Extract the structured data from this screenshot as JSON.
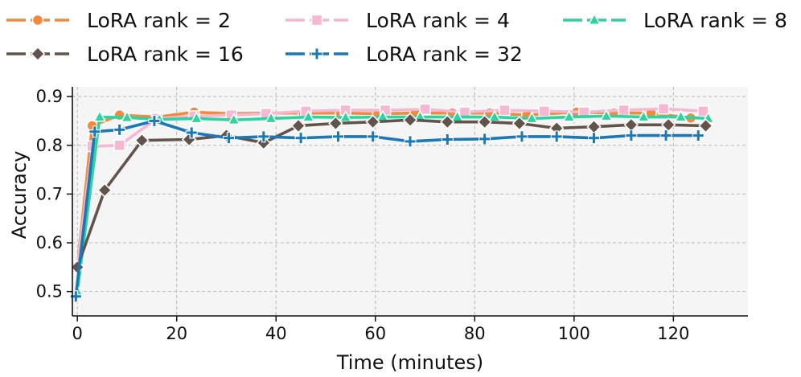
{
  "chart_data": {
    "type": "line",
    "xlabel": "Time (minutes)",
    "ylabel": "Accuracy",
    "xlim": [
      -1,
      135
    ],
    "ylim": [
      0.45,
      0.92
    ],
    "xticks": [
      0,
      20,
      40,
      60,
      80,
      100,
      120
    ],
    "yticks": [
      0.5,
      0.6,
      0.7,
      0.8,
      0.9
    ],
    "xtick_labels": [
      "0",
      "20",
      "40",
      "60",
      "80",
      "100",
      "120"
    ],
    "ytick_labels": [
      "0.5",
      "0.6",
      "0.7",
      "0.8",
      "0.9"
    ],
    "grid": true,
    "legend_position": "top",
    "series": [
      {
        "name": "LoRA rank = 2",
        "legend_label": "LoRA rank = 2",
        "color": "#f4893b",
        "marker": "circle",
        "x": [
          0,
          3,
          8.5,
          16,
          23.5,
          31,
          38,
          45.5,
          53,
          60.5,
          68,
          75.5,
          83,
          90.5,
          100.5,
          108,
          115.5,
          123.5
        ],
        "y": [
          0.55,
          0.84,
          0.862,
          0.858,
          0.868,
          0.865,
          0.866,
          0.866,
          0.866,
          0.865,
          0.866,
          0.866,
          0.866,
          0.862,
          0.868,
          0.866,
          0.866,
          0.856
        ]
      },
      {
        "name": "LoRA rank = 4",
        "legend_label": "LoRA rank = 4",
        "color": "#f7b6d2",
        "marker": "square",
        "x": [
          0,
          3,
          8.5,
          16,
          23.5,
          31,
          38,
          46,
          54,
          62,
          70,
          78,
          86,
          94,
          102,
          110,
          118,
          126
        ],
        "y": [
          0.55,
          0.798,
          0.8,
          0.855,
          0.86,
          0.862,
          0.865,
          0.87,
          0.872,
          0.872,
          0.874,
          0.868,
          0.872,
          0.87,
          0.868,
          0.872,
          0.875,
          0.87
        ]
      },
      {
        "name": "LoRA rank = 8",
        "legend_label": "LoRA rank = 8",
        "color": "#2dd4a0",
        "marker": "triangle",
        "x": [
          0,
          4.5,
          10,
          16.5,
          24,
          31.5,
          39,
          46.5,
          54,
          61.5,
          69,
          76.5,
          84,
          91.5,
          99,
          106.5,
          114,
          121.5,
          127
        ],
        "y": [
          0.5,
          0.858,
          0.857,
          0.853,
          0.855,
          0.852,
          0.855,
          0.858,
          0.857,
          0.858,
          0.858,
          0.858,
          0.858,
          0.855,
          0.858,
          0.86,
          0.858,
          0.858,
          0.855
        ]
      },
      {
        "name": "LoRA rank = 16",
        "legend_label": "LoRA rank = 16",
        "color": "#62544a",
        "marker": "diamond",
        "x": [
          0,
          5.5,
          13,
          22.5,
          30,
          37.5,
          44.5,
          52,
          59.5,
          67,
          74.5,
          82,
          89,
          96.5,
          104,
          111.5,
          119,
          126.5
        ],
        "y": [
          0.55,
          0.708,
          0.81,
          0.812,
          0.82,
          0.805,
          0.84,
          0.845,
          0.848,
          0.852,
          0.848,
          0.848,
          0.845,
          0.835,
          0.838,
          0.842,
          0.842,
          0.84
        ]
      },
      {
        "name": "LoRA rank = 32",
        "legend_label": "LoRA rank = 32",
        "color": "#1878b8",
        "marker": "plus",
        "x": [
          -0.3,
          3.5,
          8.5,
          15.5,
          23,
          30.5,
          37.5,
          45,
          52.5,
          59.5,
          67,
          74.5,
          82,
          89.5,
          96.5,
          104,
          111.5,
          118.5,
          125
        ],
        "y": [
          0.49,
          0.828,
          0.832,
          0.85,
          0.826,
          0.815,
          0.818,
          0.815,
          0.818,
          0.818,
          0.808,
          0.812,
          0.813,
          0.818,
          0.818,
          0.815,
          0.82,
          0.82,
          0.82
        ]
      }
    ]
  }
}
